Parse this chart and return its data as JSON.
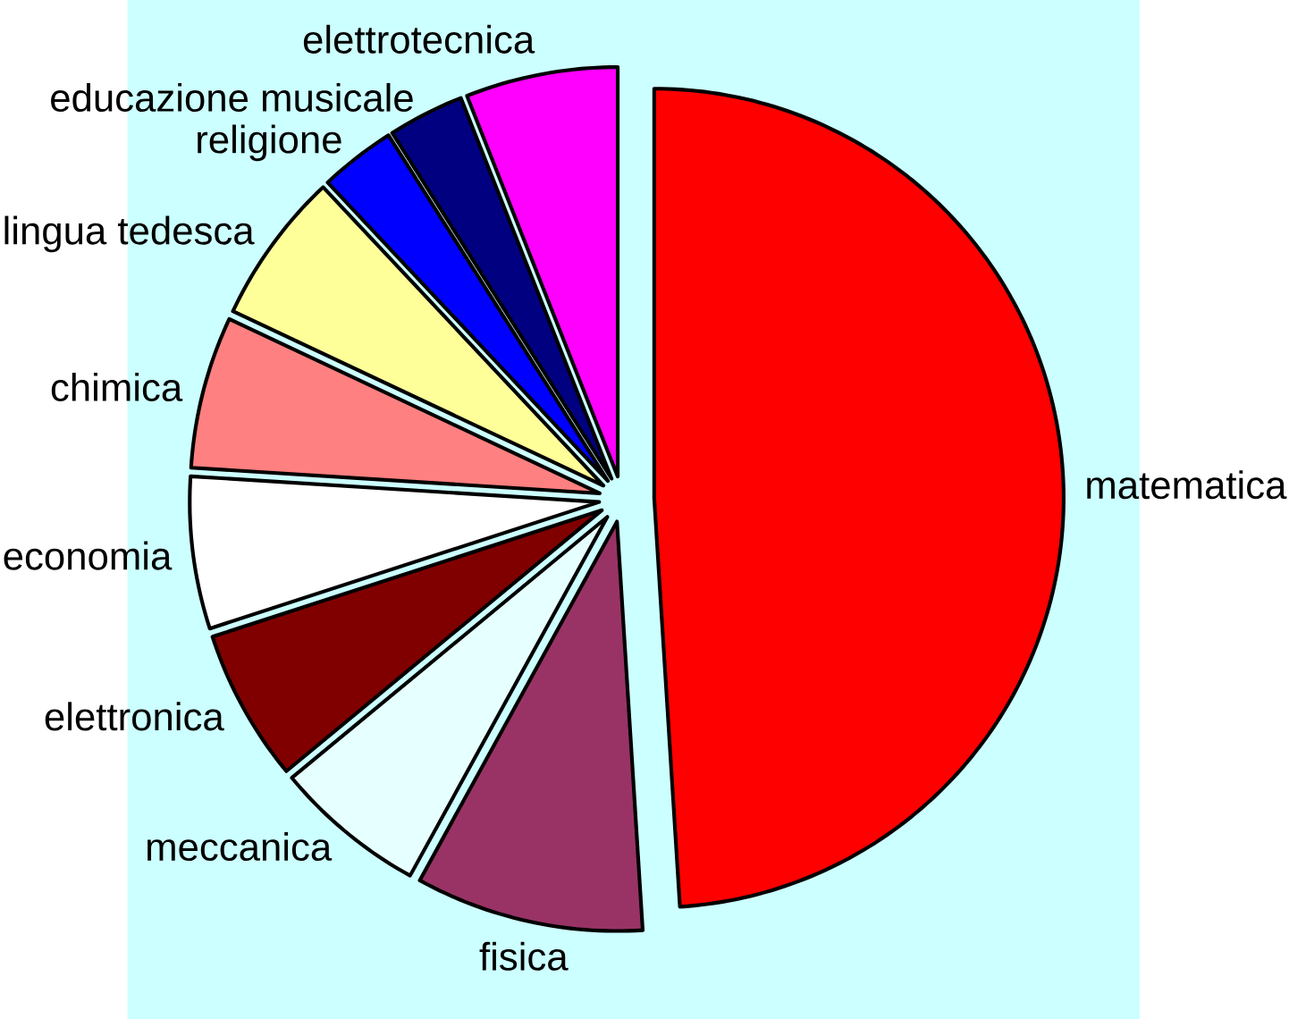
{
  "chart_data": {
    "type": "pie",
    "categories": [
      "matematica",
      "fisica",
      "meccanica",
      "elettronica",
      "economia",
      "chimica",
      "lingua tedesca",
      "religione",
      "educazione musicale",
      "elettrotecnica"
    ],
    "values": [
      49,
      9,
      6,
      6,
      6,
      6,
      6,
      3,
      3,
      6
    ],
    "colors": [
      "#ff0000",
      "#993366",
      "#e6ffff",
      "#800000",
      "#ffffff",
      "#ff8080",
      "#ffff99",
      "#0000ff",
      "#000080",
      "#ff00ff"
    ]
  }
}
